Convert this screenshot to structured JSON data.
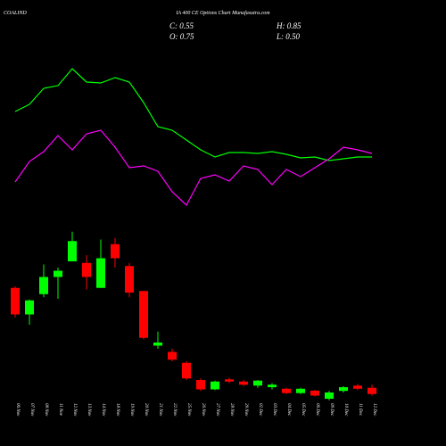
{
  "chart_data": {
    "type": "candlestick",
    "title": "COALIND",
    "subtitle": "IA 400  CE Options  Chart Munafasutra.com",
    "summary": {
      "C": "C: 0.55",
      "H": "H: 0.85",
      "O": "O: 0.75",
      "L": "L: 0.50"
    },
    "categories": [
      "06 Nov",
      "07 Nov",
      "08 Nov",
      "11 Nov",
      "12 Nov",
      "13 Nov",
      "14 Nov",
      "18 Nov",
      "19 Nov",
      "20 Nov",
      "21 Nov",
      "22 Nov",
      "25 Nov",
      "26 Nov",
      "27 Nov",
      "28 Nov",
      "29 Nov",
      "02 Dec",
      "03 Dec",
      "04 Dec",
      "05 Dec",
      "06 Dec",
      "09 Dec",
      "10 Dec",
      "11 Dec",
      "12 Dec"
    ],
    "open": [
      3.95,
      3.1,
      3.75,
      4.3,
      4.8,
      4.75,
      3.95,
      5.35,
      4.65,
      3.85,
      2.1,
      1.9,
      1.55,
      1.0,
      0.7,
      1.02,
      0.95,
      0.82,
      0.77,
      0.72,
      0.58,
      0.66,
      0.4,
      0.65,
      0.82,
      0.75
    ],
    "high": [
      4.0,
      3.58,
      4.7,
      4.6,
      5.75,
      5.0,
      5.5,
      5.55,
      4.75,
      3.85,
      2.55,
      2.0,
      1.6,
      1.05,
      0.98,
      1.08,
      1.0,
      1.0,
      0.9,
      0.75,
      0.75,
      0.68,
      0.65,
      0.8,
      0.87,
      0.85
    ],
    "low": [
      3.0,
      2.77,
      3.65,
      3.6,
      4.8,
      3.9,
      3.95,
      4.6,
      3.65,
      2.3,
      2.0,
      1.6,
      1.0,
      0.65,
      0.68,
      0.9,
      0.8,
      0.75,
      0.7,
      0.55,
      0.55,
      0.48,
      0.35,
      0.6,
      0.68,
      0.5
    ],
    "close": [
      3.1,
      3.55,
      4.3,
      4.5,
      5.45,
      4.3,
      4.9,
      4.9,
      3.8,
      2.35,
      2.2,
      1.65,
      1.05,
      0.7,
      0.95,
      0.95,
      0.85,
      0.98,
      0.85,
      0.58,
      0.72,
      0.5,
      0.6,
      0.77,
      0.72,
      0.55
    ],
    "up_color": "#00ff00",
    "down_color": "#ff0000",
    "ylim": [
      0,
      6
    ],
    "indicators": {
      "ylim": [
        0,
        200
      ],
      "series": [
        {
          "color": "#00ff00",
          "values": [
            125,
            133,
            151,
            154,
            173,
            158,
            157,
            163,
            158,
            135,
            108,
            104,
            93,
            82,
            74,
            79,
            79,
            78,
            80,
            77,
            73,
            74,
            70,
            72,
            74,
            74
          ]
        },
        {
          "color": "#ff00ff",
          "values": [
            46,
            69,
            80,
            98,
            82,
            100,
            104,
            85,
            62,
            64,
            58,
            35,
            20,
            50,
            54,
            47,
            64,
            60,
            43,
            60,
            52,
            62,
            72,
            85,
            82,
            78
          ]
        }
      ]
    }
  }
}
